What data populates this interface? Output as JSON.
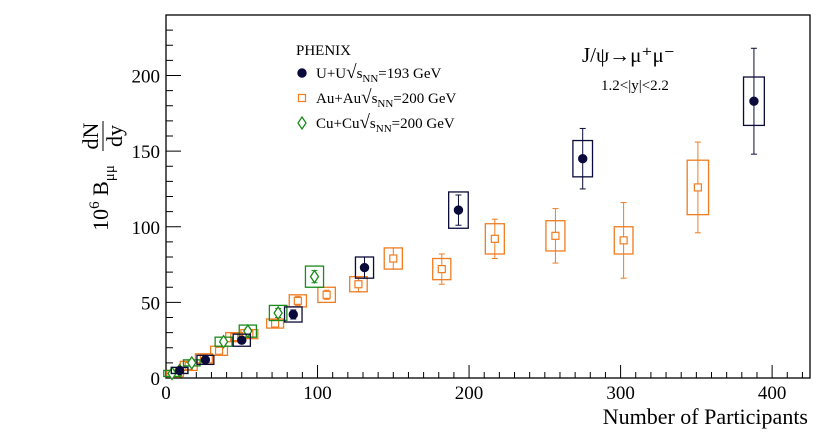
{
  "chart_data": {
    "type": "scatter",
    "title": "",
    "xlabel": "Number of Participants",
    "ylabel": {
      "prefix": "10",
      "prefix_exp": "6",
      "b": "B",
      "b_sub": "μμ",
      "frac_num": "dN",
      "frac_den": "dy"
    },
    "xlim": [
      0,
      425
    ],
    "ylim": [
      0,
      240
    ],
    "x_ticks": [
      0,
      100,
      200,
      300,
      400
    ],
    "y_ticks": [
      0,
      50,
      100,
      150,
      200
    ],
    "legend_position": "top-center",
    "legend_title": "PHENIX",
    "annotation": {
      "main": "J/ψ→μ⁺μ⁻",
      "sub": "1.2<|y|<2.2"
    },
    "series": [
      {
        "name": "U+U",
        "energy_label": "=193 GeV",
        "color": "#0b0b3b",
        "marker": "filled-circle",
        "points": [
          {
            "x": 9,
            "y": 5,
            "stat": 1,
            "sys": 2
          },
          {
            "x": 26,
            "y": 12,
            "stat": 1.5,
            "sys": 3
          },
          {
            "x": 50,
            "y": 25,
            "stat": 2,
            "sys": 4
          },
          {
            "x": 84,
            "y": 42,
            "stat": 3,
            "sys": 5
          },
          {
            "x": 131,
            "y": 73,
            "stat": 7,
            "sys": 7
          },
          {
            "x": 193,
            "y": 111,
            "stat": 10,
            "sys": 12
          },
          {
            "x": 275,
            "y": 145,
            "stat": 20,
            "sys": 12
          },
          {
            "x": 388,
            "y": 183,
            "stat": 35,
            "sys": 16
          }
        ]
      },
      {
        "name": "Au+Au",
        "energy_label": "=200 GeV",
        "color": "#f07c20",
        "marker": "open-square",
        "points": [
          {
            "x": 6,
            "y": 3,
            "stat": 1,
            "sys": 2
          },
          {
            "x": 15,
            "y": 8,
            "stat": 1,
            "sys": 3
          },
          {
            "x": 25,
            "y": 13,
            "stat": 1.5,
            "sys": 3
          },
          {
            "x": 35,
            "y": 18,
            "stat": 2,
            "sys": 3
          },
          {
            "x": 45,
            "y": 27,
            "stat": 2,
            "sys": 3
          },
          {
            "x": 55,
            "y": 29,
            "stat": 2,
            "sys": 3
          },
          {
            "x": 72,
            "y": 36,
            "stat": 2,
            "sys": 3
          },
          {
            "x": 87,
            "y": 51,
            "stat": 3,
            "sys": 4
          },
          {
            "x": 106,
            "y": 55,
            "stat": 3,
            "sys": 5
          },
          {
            "x": 127,
            "y": 62,
            "stat": 5,
            "sys": 5
          },
          {
            "x": 150,
            "y": 79,
            "stat": 7,
            "sys": 7
          },
          {
            "x": 182,
            "y": 72,
            "stat": 10,
            "sys": 7
          },
          {
            "x": 217,
            "y": 92,
            "stat": 13,
            "sys": 10
          },
          {
            "x": 257,
            "y": 94,
            "stat": 18,
            "sys": 10
          },
          {
            "x": 302,
            "y": 91,
            "stat": 25,
            "sys": 9
          },
          {
            "x": 351,
            "y": 126,
            "stat": 30,
            "sys": 18
          }
        ]
      },
      {
        "name": "Cu+Cu",
        "energy_label": "=200 GeV",
        "color": "#1a8a1a",
        "marker": "open-diamond",
        "points": [
          {
            "x": 4,
            "y": 3,
            "stat": 0.5,
            "sys": 2
          },
          {
            "x": 9,
            "y": 5,
            "stat": 0.5,
            "sys": 2
          },
          {
            "x": 17,
            "y": 10,
            "stat": 1,
            "sys": 2
          },
          {
            "x": 38,
            "y": 24,
            "stat": 1.5,
            "sys": 3
          },
          {
            "x": 54,
            "y": 31,
            "stat": 2,
            "sys": 4
          },
          {
            "x": 74,
            "y": 43,
            "stat": 3,
            "sys": 5
          },
          {
            "x": 98,
            "y": 67,
            "stat": 4,
            "sys": 7
          }
        ]
      }
    ]
  },
  "legend_labels": {
    "sqrt_symbol": "√",
    "s_char": "s",
    "s_sub": "NN"
  }
}
